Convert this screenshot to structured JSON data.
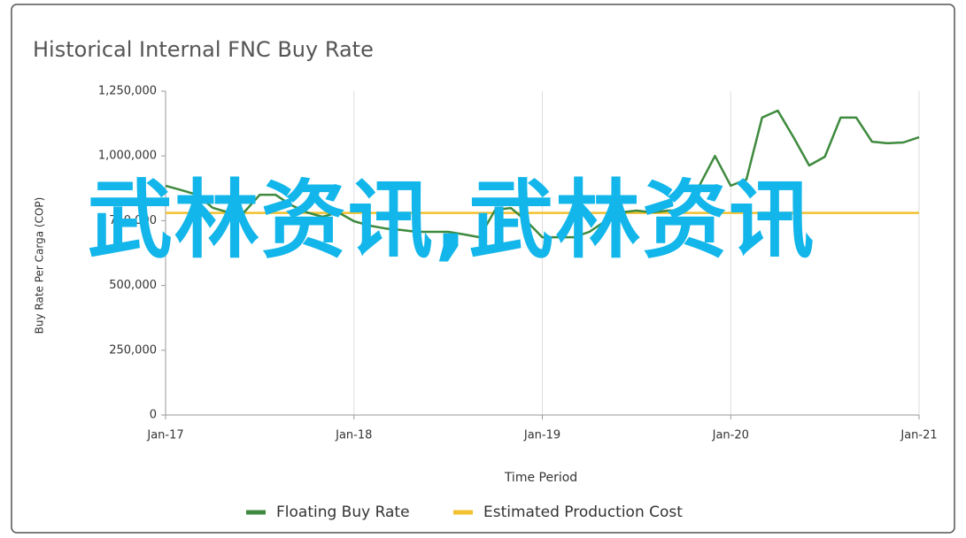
{
  "chart_data": {
    "type": "line",
    "title": "Historical Internal FNC Buy Rate",
    "x_label": "Time Period",
    "y_label": "Buy Rate Per Carga (COP)",
    "categories": [
      "Jan-17",
      null,
      null,
      null,
      null,
      null,
      null,
      null,
      null,
      null,
      null,
      null,
      "Jan-18",
      null,
      null,
      null,
      null,
      null,
      null,
      null,
      null,
      null,
      null,
      null,
      "Jan-19",
      null,
      null,
      null,
      null,
      null,
      null,
      null,
      null,
      null,
      null,
      null,
      "Jan-20",
      null,
      null,
      null,
      null,
      null,
      null,
      null,
      null,
      null,
      null,
      null,
      "Jan-21"
    ],
    "series": [
      {
        "name": "Floating Buy Rate",
        "color": "#3e8a3e",
        "values": [
          885000,
          868000,
          850000,
          800000,
          782000,
          782000,
          850000,
          850000,
          810000,
          782000,
          765000,
          782000,
          748000,
          731000,
          720000,
          714000,
          707000,
          707000,
          707000,
          697000,
          686000,
          792000,
          799000,
          748000,
          686000,
          686000,
          686000,
          707000,
          748000,
          782000,
          789000,
          782000,
          789000,
          789000,
          885000,
          1000000,
          885000,
          909000,
          1148000,
          1175000,
          1072000,
          963000,
          997000,
          1148000,
          1148000,
          1055000,
          1049000,
          1052000,
          1072000
        ]
      },
      {
        "name": "Estimated Production Cost",
        "color": "#f2c12e",
        "values": [
          780000,
          780000,
          780000,
          780000,
          780000,
          780000,
          780000,
          780000,
          780000,
          780000,
          780000,
          780000,
          780000,
          780000,
          780000,
          780000,
          780000,
          780000,
          780000,
          780000,
          780000,
          780000,
          780000,
          780000,
          780000,
          780000,
          780000,
          780000,
          780000,
          780000,
          780000,
          780000,
          780000,
          780000,
          780000,
          780000,
          780000,
          780000,
          780000,
          780000,
          780000,
          780000,
          780000,
          780000,
          780000,
          780000,
          780000,
          780000,
          780000
        ]
      }
    ],
    "ylim": [
      0,
      1250000
    ],
    "yticks": [
      0,
      {
        "value": 250000,
        "label": "250,000"
      },
      {
        "value": 500000,
        "label": "500,000"
      },
      {
        "value": 750000,
        "label": "750,000"
      },
      {
        "value": 1000000,
        "label": "1,000,000"
      },
      {
        "value": 1250000,
        "label": "1,250,000"
      }
    ],
    "grid": "x",
    "legend": "bottom"
  },
  "overlay_text": "武林资讯,武林资讯"
}
